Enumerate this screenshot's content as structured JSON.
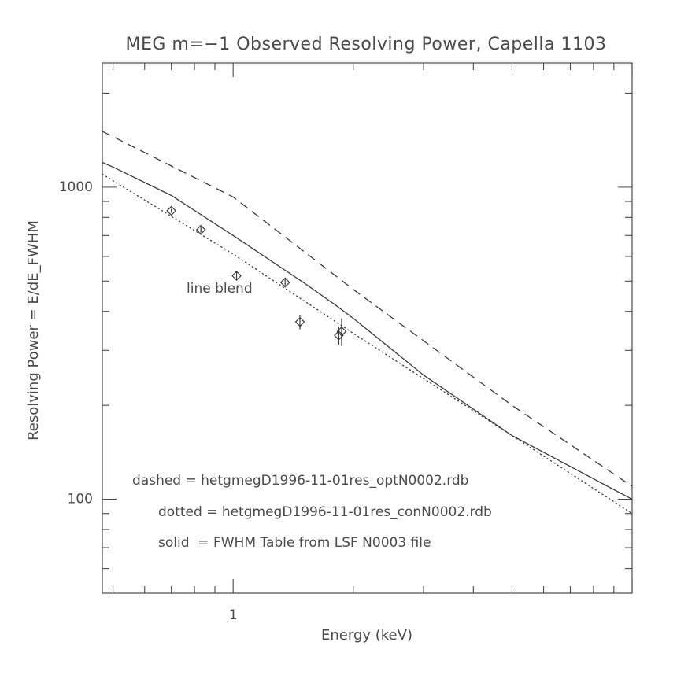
{
  "chart_data": {
    "type": "line",
    "title": "MEG m=−1 Observed Resolving Power, Capella 1103",
    "xlabel": "Energy (keV)",
    "ylabel": "Resolving Power = E/dE_FWHM",
    "xscale": "log",
    "yscale": "log",
    "xlim": [
      0.47,
      10.0
    ],
    "ylim": [
      50,
      2500
    ],
    "x_tick_labels": [
      {
        "value": 1,
        "label": "1"
      }
    ],
    "y_tick_labels": [
      {
        "value": 100,
        "label": "100"
      },
      {
        "value": 1000,
        "label": "1000"
      }
    ],
    "series": [
      {
        "name": "dashed",
        "style": "dashed",
        "x": [
          0.47,
          1.0,
          2.0,
          5.0,
          10.0
        ],
        "y": [
          1510,
          930,
          470,
          200,
          110
        ]
      },
      {
        "name": "solid",
        "style": "solid",
        "x": [
          0.47,
          0.5,
          0.7,
          1.0,
          1.5,
          1.8,
          2.0,
          3.0,
          5.0,
          10.0
        ],
        "y": [
          1200,
          1160,
          940,
          700,
          495,
          420,
          380,
          250,
          160,
          100
        ]
      },
      {
        "name": "dotted",
        "style": "dotted",
        "x": [
          0.47,
          1.0,
          2.0,
          5.0,
          10.0
        ],
        "y": [
          1100,
          610,
          340,
          160,
          90
        ]
      }
    ],
    "points": [
      {
        "x": 0.7,
        "y": 840,
        "yerr": 12
      },
      {
        "x": 0.83,
        "y": 730,
        "yerr": 15
      },
      {
        "x": 1.02,
        "y": 520,
        "yerr": 18
      },
      {
        "x": 1.35,
        "y": 495,
        "yerr": 18
      },
      {
        "x": 1.47,
        "y": 370,
        "yerr": 20
      },
      {
        "x": 1.84,
        "y": 335,
        "yerr": 22
      },
      {
        "x": 1.87,
        "y": 345,
        "yerr": 35
      }
    ],
    "annotations": {
      "line_blend": "line blend",
      "legend_dashed": "dashed = hetgmegD1996-11-01res_optN0002.rdb",
      "legend_dotted": "dotted = hetgmegD1996-11-01res_conN0002.rdb",
      "legend_solid": "solid  = FWHM Table from LSF N0003 file"
    }
  }
}
